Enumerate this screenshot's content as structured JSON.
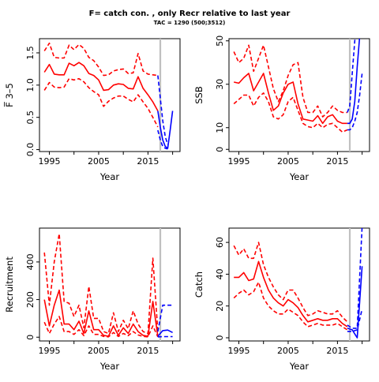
{
  "header": {
    "title": "F= catch con. , only Recr relative to last year",
    "subtitle": "TAC = 1290 (500;3512)"
  },
  "colors": {
    "history": "#ff0000",
    "forecast": "#0000ff",
    "divider": "#c0c0c0"
  },
  "chart_data": [
    {
      "type": "line",
      "panel": "f-bar",
      "ylabel": "F̅ 3–5",
      "xlabel": "Year",
      "xlim": [
        1993,
        2021.5
      ],
      "ylim": [
        -0.03,
        1.72
      ],
      "xticks": [
        1995,
        2005,
        2015
      ],
      "yticks": [
        0.0,
        0.5,
        1.0,
        1.5
      ],
      "ytick_labels": [
        "0.0",
        "0.5",
        "1.0",
        "1.5"
      ],
      "vline": 2017.5,
      "series": [
        {
          "role": "history-median",
          "style": "solid",
          "color": "#ff0000",
          "x": [
            1994,
            1995,
            1996,
            1997,
            1998,
            1999,
            2000,
            2001,
            2002,
            2003,
            2004,
            2005,
            2006,
            2007,
            2008,
            2009,
            2010,
            2011,
            2012,
            2013,
            2014,
            2015,
            2016,
            2017
          ],
          "y": [
            1.2,
            1.32,
            1.17,
            1.16,
            1.16,
            1.34,
            1.3,
            1.35,
            1.3,
            1.18,
            1.15,
            1.08,
            0.92,
            0.93,
            1.0,
            1.02,
            1.01,
            0.95,
            0.94,
            1.13,
            0.95,
            0.85,
            0.74,
            0.6
          ]
        },
        {
          "role": "history-upper",
          "style": "dashed",
          "color": "#ff0000",
          "x": [
            1994,
            1995,
            1996,
            1997,
            1998,
            1999,
            2000,
            2001,
            2002,
            2003,
            2004,
            2005,
            2006,
            2007,
            2008,
            2009,
            2010,
            2011,
            2012,
            2013,
            2014,
            2015,
            2016,
            2017
          ],
          "y": [
            1.53,
            1.65,
            1.43,
            1.42,
            1.42,
            1.62,
            1.55,
            1.63,
            1.57,
            1.43,
            1.38,
            1.28,
            1.15,
            1.16,
            1.22,
            1.24,
            1.25,
            1.18,
            1.19,
            1.49,
            1.22,
            1.17,
            1.16,
            1.15
          ]
        },
        {
          "role": "history-lower",
          "style": "dashed",
          "color": "#ff0000",
          "x": [
            1994,
            1995,
            1996,
            1997,
            1998,
            1999,
            2000,
            2001,
            2002,
            2003,
            2004,
            2005,
            2006,
            2007,
            2008,
            2009,
            2010,
            2011,
            2012,
            2013,
            2014,
            2015,
            2016,
            2017
          ],
          "y": [
            0.92,
            1.04,
            0.97,
            0.96,
            0.97,
            1.1,
            1.08,
            1.1,
            1.05,
            0.96,
            0.9,
            0.85,
            0.67,
            0.75,
            0.8,
            0.83,
            0.83,
            0.78,
            0.74,
            0.85,
            0.74,
            0.64,
            0.5,
            0.35
          ]
        },
        {
          "role": "forecast-median",
          "style": "solid",
          "color": "#0000ff",
          "x": [
            2017,
            2017.5,
            2018,
            2018.5,
            2019,
            2019.5,
            2020
          ],
          "y": [
            0.6,
            0.35,
            0.15,
            0.05,
            0.02,
            0.3,
            0.6
          ]
        },
        {
          "role": "forecast-upper",
          "style": "dashed",
          "color": "#0000ff",
          "x": [
            2017,
            2017.5,
            2018,
            2018.5,
            2019
          ],
          "y": [
            1.15,
            0.8,
            0.45,
            0.2,
            0.08
          ]
        },
        {
          "role": "forecast-lower",
          "style": "dashed",
          "color": "#0000ff",
          "x": [
            2017,
            2017.5,
            2018,
            2018.5,
            2019
          ],
          "y": [
            0.3,
            0.15,
            0.05,
            0.02,
            0.01
          ]
        }
      ]
    },
    {
      "type": "line",
      "panel": "ssb",
      "ylabel": "SSB",
      "xlabel": "Year",
      "xlim": [
        1993,
        2021.5
      ],
      "ylim": [
        -1,
        51
      ],
      "xticks": [
        1995,
        2005,
        2015
      ],
      "yticks": [
        0,
        10,
        30,
        50
      ],
      "ytick_labels": [
        "0",
        "10",
        "30",
        "50"
      ],
      "vline": 2017.5,
      "series": [
        {
          "role": "history-median",
          "style": "solid",
          "color": "#ff0000",
          "x": [
            1994,
            1995,
            1996,
            1997,
            1998,
            1999,
            2000,
            2001,
            2002,
            2003,
            2004,
            2005,
            2006,
            2007,
            2008,
            2009,
            2010,
            2011,
            2012,
            2013,
            2014,
            2015,
            2016,
            2017
          ],
          "y": [
            31,
            30.5,
            33,
            35,
            27,
            31,
            35,
            26,
            18,
            20,
            26,
            30,
            31,
            21,
            14,
            13.5,
            13,
            15.5,
            12,
            15,
            16,
            13,
            12,
            12
          ]
        },
        {
          "role": "history-upper",
          "style": "dashed",
          "color": "#ff0000",
          "x": [
            1994,
            1995,
            1996,
            1997,
            1998,
            1999,
            2000,
            2001,
            2002,
            2003,
            2004,
            2005,
            2006,
            2007,
            2008,
            2009,
            2010,
            2011,
            2012,
            2013,
            2014,
            2015,
            2016,
            2017
          ],
          "y": [
            45,
            40,
            42,
            48,
            36,
            42,
            48,
            38,
            28,
            22,
            27,
            34,
            39,
            40,
            24,
            17,
            17,
            20,
            15,
            17,
            20,
            18,
            17,
            17
          ]
        },
        {
          "role": "history-lower",
          "style": "dashed",
          "color": "#ff0000",
          "x": [
            1994,
            1995,
            1996,
            1997,
            1998,
            1999,
            2000,
            2001,
            2002,
            2003,
            2004,
            2005,
            2006,
            2007,
            2008,
            2009,
            2010,
            2011,
            2012,
            2013,
            2014,
            2015,
            2016,
            2017
          ],
          "y": [
            21,
            23,
            25,
            25,
            20,
            24,
            26,
            22,
            15,
            14,
            16,
            22,
            24,
            18,
            12,
            10.5,
            10,
            12,
            10,
            11.5,
            12,
            10,
            8,
            9
          ]
        },
        {
          "role": "forecast-median",
          "style": "solid",
          "color": "#0000ff",
          "x": [
            2017,
            2017.5,
            2018,
            2018.5,
            2019,
            2019.5,
            2020
          ],
          "y": [
            12,
            12,
            14,
            22,
            38,
            52,
            60
          ]
        },
        {
          "role": "forecast-upper",
          "style": "dashed",
          "color": "#0000ff",
          "x": [
            2017,
            2017.5,
            2018,
            2018.5,
            2019
          ],
          "y": [
            17,
            20,
            35,
            50,
            60
          ]
        },
        {
          "role": "forecast-lower",
          "style": "dashed",
          "color": "#0000ff",
          "x": [
            2017,
            2017.5,
            2018,
            2018.5,
            2019,
            2019.5,
            2020
          ],
          "y": [
            9,
            9,
            10,
            13,
            17,
            25,
            35
          ]
        }
      ]
    },
    {
      "type": "line",
      "panel": "recruitment",
      "ylabel": "Recruitment",
      "xlabel": "Year",
      "xlim": [
        1993,
        2021.5
      ],
      "ylim": [
        -20,
        580
      ],
      "xticks": [
        1995,
        2005,
        2015
      ],
      "yticks": [
        0,
        200,
        400
      ],
      "ytick_labels": [
        "0",
        "200",
        "400"
      ],
      "vline": 2017.5,
      "series": [
        {
          "role": "history-median",
          "style": "solid",
          "color": "#ff0000",
          "x": [
            1994,
            1995,
            1996,
            1997,
            1998,
            1999,
            2000,
            2001,
            2002,
            2003,
            2004,
            2005,
            2006,
            2007,
            2008,
            2009,
            2010,
            2011,
            2012,
            2013,
            2014,
            2015,
            2016,
            2017
          ],
          "y": [
            200,
            60,
            170,
            250,
            70,
            70,
            40,
            85,
            20,
            140,
            40,
            40,
            10,
            5,
            60,
            10,
            50,
            20,
            70,
            30,
            10,
            5,
            190,
            5
          ]
        },
        {
          "role": "history-upper",
          "style": "dashed",
          "color": "#ff0000",
          "x": [
            1994,
            1995,
            1996,
            1997,
            1998,
            1999,
            2000,
            2001,
            2002,
            2003,
            2004,
            2005,
            2006,
            2007,
            2008,
            2009,
            2010,
            2011,
            2012,
            2013,
            2014,
            2015,
            2016,
            2017
          ],
          "y": [
            450,
            170,
            400,
            550,
            190,
            180,
            110,
            170,
            50,
            270,
            100,
            100,
            30,
            20,
            130,
            30,
            90,
            45,
            140,
            70,
            30,
            20,
            420,
            30
          ]
        },
        {
          "role": "history-lower",
          "style": "dashed",
          "color": "#ff0000",
          "x": [
            1994,
            1995,
            1996,
            1997,
            1998,
            1999,
            2000,
            2001,
            2002,
            2003,
            2004,
            2005,
            2006,
            2007,
            2008,
            2009,
            2010,
            2011,
            2012,
            2013,
            2014,
            2015,
            2016,
            2017
          ],
          "y": [
            80,
            20,
            70,
            110,
            30,
            30,
            15,
            40,
            8,
            60,
            15,
            15,
            4,
            2,
            25,
            4,
            20,
            8,
            30,
            12,
            4,
            2,
            60,
            2
          ]
        },
        {
          "role": "forecast-median",
          "style": "solid",
          "color": "#0000ff",
          "x": [
            2017,
            2018,
            2019,
            2020
          ],
          "y": [
            5,
            35,
            38,
            25
          ]
        },
        {
          "role": "forecast-upper",
          "style": "dashed",
          "color": "#0000ff",
          "x": [
            2017,
            2018,
            2019,
            2020
          ],
          "y": [
            30,
            170,
            170,
            170
          ]
        },
        {
          "role": "forecast-lower",
          "style": "dashed",
          "color": "#0000ff",
          "x": [
            2017,
            2018,
            2019,
            2020
          ],
          "y": [
            2,
            3,
            3,
            3
          ]
        }
      ]
    },
    {
      "type": "line",
      "panel": "catch",
      "ylabel": "Catch",
      "xlabel": "Year",
      "xlim": [
        1993,
        2021.5
      ],
      "ylim": [
        -2,
        69
      ],
      "xticks": [
        1995,
        2005,
        2015
      ],
      "yticks": [
        0,
        20,
        40,
        60
      ],
      "ytick_labels": [
        "0",
        "20",
        "40",
        "60"
      ],
      "vline": 2017.5,
      "series": [
        {
          "role": "history-median",
          "style": "solid",
          "color": "#ff0000",
          "x": [
            1994,
            1995,
            1996,
            1997,
            1998,
            1999,
            2000,
            2001,
            2002,
            2003,
            2004,
            2005,
            2006,
            2007,
            2008,
            2009,
            2010,
            2011,
            2012,
            2013,
            2014,
            2015,
            2016,
            2017
          ],
          "y": [
            38,
            38,
            41,
            36,
            37,
            48,
            38,
            30,
            25,
            22,
            20,
            24,
            22,
            19,
            14,
            10,
            11,
            12,
            11,
            11,
            12,
            12,
            9,
            7
          ]
        },
        {
          "role": "history-upper",
          "style": "dashed",
          "color": "#ff0000",
          "x": [
            1994,
            1995,
            1996,
            1997,
            1998,
            1999,
            2000,
            2001,
            2002,
            2003,
            2004,
            2005,
            2006,
            2007,
            2008,
            2009,
            2010,
            2011,
            2012,
            2013,
            2014,
            2015,
            2016,
            2017
          ],
          "y": [
            58,
            52,
            56,
            50,
            50,
            60,
            46,
            38,
            32,
            27,
            24,
            30,
            30,
            25,
            19,
            14,
            15,
            17,
            16,
            15,
            15,
            17,
            13,
            10
          ]
        },
        {
          "role": "history-lower",
          "style": "dashed",
          "color": "#ff0000",
          "x": [
            1994,
            1995,
            1996,
            1997,
            1998,
            1999,
            2000,
            2001,
            2002,
            2003,
            2004,
            2005,
            2006,
            2007,
            2008,
            2009,
            2010,
            2011,
            2012,
            2013,
            2014,
            2015,
            2016,
            2017
          ],
          "y": [
            25,
            28,
            30,
            27,
            29,
            35,
            25,
            20,
            17,
            15,
            15,
            18,
            16,
            14,
            10,
            7,
            8,
            9,
            8,
            8,
            8,
            9,
            7,
            5
          ]
        },
        {
          "role": "forecast-median",
          "style": "solid",
          "color": "#0000ff",
          "x": [
            2017,
            2018,
            2019,
            2020
          ],
          "y": [
            6,
            5,
            0,
            45
          ]
        },
        {
          "role": "forecast-upper",
          "style": "dashed",
          "color": "#0000ff",
          "x": [
            2017,
            2018,
            2019,
            2020
          ],
          "y": [
            8,
            6,
            6,
            70
          ]
        },
        {
          "role": "forecast-lower",
          "style": "dashed",
          "color": "#0000ff",
          "x": [
            2017,
            2018,
            2019,
            2020
          ],
          "y": [
            4,
            4,
            5,
            18
          ]
        }
      ]
    }
  ]
}
